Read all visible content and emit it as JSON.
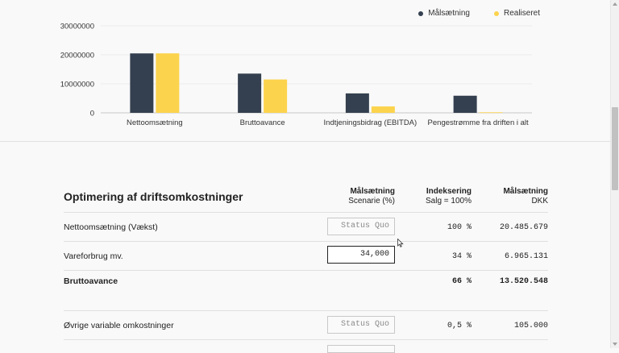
{
  "legend": [
    {
      "label": "Målsætning",
      "color": "#34404f"
    },
    {
      "label": "Realiseret",
      "color": "#fcd34d"
    }
  ],
  "chart_data": {
    "type": "bar",
    "categories": [
      "Nettoomsætning",
      "Bruttoavance",
      "Indtjeningsbidrag (EBITDA)",
      "Pengestrømme fra driften i alt"
    ],
    "series": [
      {
        "name": "Målsætning",
        "color": "#34404f",
        "values": [
          20485679,
          13520548,
          6700000,
          5900000
        ]
      },
      {
        "name": "Realiseret",
        "color": "#fcd34d",
        "values": [
          20500000,
          11500000,
          2200000,
          200000
        ]
      }
    ],
    "yticks": [
      "30000000",
      "20000000",
      "10000000",
      "0"
    ],
    "ylim": [
      0,
      30000000
    ],
    "grid": true,
    "legend_position": "top-right"
  },
  "table": {
    "title": "Optimering af driftsomkostninger",
    "columns": [
      {
        "line1": "Målsætning",
        "line2": "Scenarie (%)"
      },
      {
        "line1": "Indeksering",
        "line2": "Salg = 100%"
      },
      {
        "line1": "Målsætning",
        "line2": "DKK"
      }
    ],
    "rows": [
      {
        "label": "Nettoomsætning (Vækst)",
        "input_placeholder": "Status Quo",
        "input_value": "",
        "index": "100 %",
        "dkk": "20.485.679"
      },
      {
        "label": "Vareforbrug mv.",
        "input_placeholder": "",
        "input_value": "34,000",
        "index": "34 %",
        "dkk": "6.965.131"
      },
      {
        "label": "Bruttoavance",
        "index": "66 %",
        "dkk": "13.520.548"
      },
      {
        "label": "Øvrige variable omkostninger",
        "input_placeholder": "Status Quo",
        "input_value": "",
        "index": "0,5 %",
        "dkk": "105.000"
      }
    ]
  }
}
